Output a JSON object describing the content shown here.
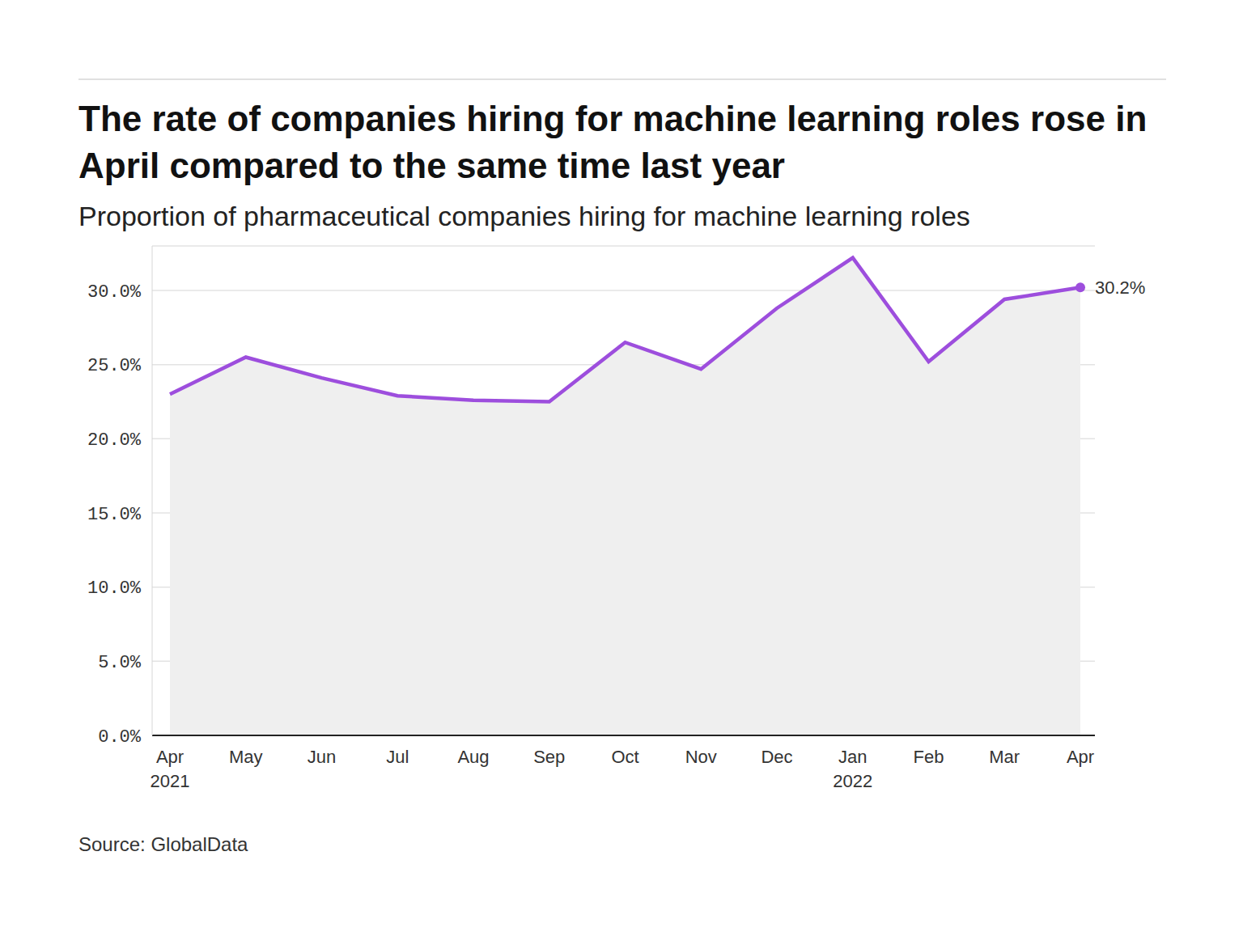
{
  "chart_data": {
    "type": "area",
    "title": "The rate of companies hiring for machine learning roles rose in April compared to the same time last year",
    "subtitle": "Proportion of pharmaceutical companies hiring for machine learning roles",
    "source": "Source: GlobalData",
    "categories": [
      "Apr 2021",
      "May",
      "Jun",
      "Jul",
      "Aug",
      "Sep",
      "Oct",
      "Nov",
      "Dec",
      "Jan 2022",
      "Feb",
      "Mar",
      "Apr"
    ],
    "values": [
      23.0,
      25.5,
      24.1,
      22.9,
      22.6,
      22.5,
      26.5,
      24.7,
      28.8,
      32.2,
      25.2,
      29.4,
      30.2
    ],
    "value_labels": [
      null,
      null,
      null,
      null,
      null,
      null,
      null,
      null,
      null,
      null,
      null,
      null,
      "30.2%"
    ],
    "color": "#9d4edd",
    "ylim": [
      0,
      33
    ],
    "yticks": [
      {
        "value": 0,
        "label": "0.0%"
      },
      {
        "value": 5,
        "label": "5.0%"
      },
      {
        "value": 10,
        "label": "10.0%"
      },
      {
        "value": 15,
        "label": "15.0%"
      },
      {
        "value": 20,
        "label": "20.0%"
      },
      {
        "value": 25,
        "label": "25.0%"
      },
      {
        "value": 30,
        "label": "30.0%"
      }
    ],
    "grid": true
  }
}
